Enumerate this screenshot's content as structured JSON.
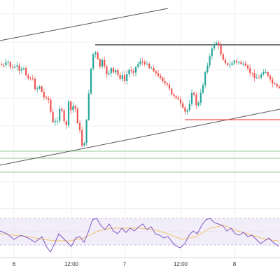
{
  "chart_data": {
    "type": "candlestick",
    "title": "",
    "xlabel": "",
    "ylabel": "",
    "x_tick_labels": [
      "6",
      "12:00",
      "7",
      "12:00",
      "8"
    ],
    "grid": true,
    "colors": {
      "up": "#26a69a",
      "down": "#ef5350",
      "trendline": "#555555",
      "resistance": "#222222",
      "support": "#ef5350",
      "horizontal_green": "#66bb6a",
      "rsi_line": "#7e57c2",
      "rsi_signal": "#f2c26b",
      "rsi_band": "#ede7f6"
    },
    "price_path": [
      [
        0,
        92
      ],
      [
        6,
        95
      ],
      [
        11,
        88
      ],
      [
        17,
        99
      ],
      [
        23,
        93
      ],
      [
        28,
        104
      ],
      [
        34,
        96
      ],
      [
        40,
        112
      ],
      [
        45,
        110
      ],
      [
        51,
        128
      ],
      [
        57,
        122
      ],
      [
        62,
        140
      ],
      [
        68,
        136
      ],
      [
        72,
        158
      ],
      [
        76,
        178
      ],
      [
        82,
        170
      ],
      [
        86,
        150
      ],
      [
        90,
        168
      ],
      [
        94,
        185
      ],
      [
        98,
        148
      ],
      [
        102,
        160
      ],
      [
        106,
        146
      ],
      [
        110,
        170
      ],
      [
        114,
        188
      ],
      [
        118,
        212
      ],
      [
        122,
        196
      ],
      [
        126,
        140
      ],
      [
        130,
        98
      ],
      [
        134,
        72
      ],
      [
        138,
        80
      ],
      [
        142,
        96
      ],
      [
        146,
        88
      ],
      [
        150,
        100
      ],
      [
        154,
        108
      ],
      [
        158,
        96
      ],
      [
        162,
        106
      ],
      [
        166,
        100
      ],
      [
        170,
        112
      ],
      [
        174,
        108
      ],
      [
        178,
        116
      ],
      [
        182,
        104
      ],
      [
        186,
        98
      ],
      [
        190,
        102
      ],
      [
        194,
        96
      ],
      [
        198,
        90
      ],
      [
        202,
        84
      ],
      [
        206,
        96
      ],
      [
        210,
        88
      ],
      [
        214,
        98
      ],
      [
        218,
        96
      ],
      [
        222,
        104
      ],
      [
        226,
        110
      ],
      [
        230,
        108
      ],
      [
        234,
        118
      ],
      [
        238,
        122
      ],
      [
        242,
        128
      ],
      [
        246,
        138
      ],
      [
        250,
        134
      ],
      [
        254,
        142
      ],
      [
        258,
        150
      ],
      [
        262,
        158
      ],
      [
        266,
        162
      ],
      [
        270,
        150
      ],
      [
        274,
        130
      ],
      [
        278,
        140
      ],
      [
        282,
        155
      ],
      [
        286,
        138
      ],
      [
        290,
        120
      ],
      [
        294,
        98
      ],
      [
        298,
        86
      ],
      [
        302,
        74
      ],
      [
        306,
        62
      ],
      [
        310,
        60
      ],
      [
        314,
        72
      ],
      [
        318,
        82
      ],
      [
        322,
        88
      ],
      [
        326,
        96
      ],
      [
        330,
        92
      ],
      [
        334,
        86
      ],
      [
        338,
        90
      ],
      [
        342,
        88
      ],
      [
        346,
        92
      ],
      [
        350,
        96
      ],
      [
        354,
        100
      ],
      [
        358,
        104
      ],
      [
        362,
        108
      ],
      [
        366,
        110
      ],
      [
        370,
        112
      ],
      [
        374,
        104
      ],
      [
        378,
        98
      ],
      [
        382,
        108
      ],
      [
        386,
        116
      ],
      [
        390,
        120
      ],
      [
        394,
        124
      ],
      [
        398,
        128
      ]
    ],
    "rsi_path": [
      [
        0,
        330
      ],
      [
        10,
        334
      ],
      [
        20,
        342
      ],
      [
        30,
        336
      ],
      [
        40,
        340
      ],
      [
        50,
        346
      ],
      [
        60,
        338
      ],
      [
        66,
        352
      ],
      [
        72,
        360
      ],
      [
        78,
        348
      ],
      [
        84,
        334
      ],
      [
        90,
        340
      ],
      [
        96,
        346
      ],
      [
        102,
        352
      ],
      [
        108,
        340
      ],
      [
        114,
        338
      ],
      [
        120,
        346
      ],
      [
        126,
        332
      ],
      [
        132,
        314
      ],
      [
        138,
        312
      ],
      [
        144,
        322
      ],
      [
        150,
        328
      ],
      [
        156,
        320
      ],
      [
        162,
        330
      ],
      [
        168,
        334
      ],
      [
        174,
        326
      ],
      [
        180,
        332
      ],
      [
        186,
        326
      ],
      [
        192,
        330
      ],
      [
        198,
        324
      ],
      [
        204,
        320
      ],
      [
        210,
        328
      ],
      [
        216,
        324
      ],
      [
        222,
        334
      ],
      [
        228,
        336
      ],
      [
        234,
        340
      ],
      [
        240,
        338
      ],
      [
        246,
        346
      ],
      [
        252,
        352
      ],
      [
        258,
        354
      ],
      [
        264,
        348
      ],
      [
        270,
        336
      ],
      [
        276,
        330
      ],
      [
        282,
        334
      ],
      [
        288,
        322
      ],
      [
        294,
        314
      ],
      [
        300,
        312
      ],
      [
        306,
        318
      ],
      [
        312,
        320
      ],
      [
        318,
        322
      ],
      [
        324,
        330
      ],
      [
        330,
        326
      ],
      [
        336,
        334
      ],
      [
        342,
        336
      ],
      [
        348,
        332
      ],
      [
        354,
        338
      ],
      [
        360,
        336
      ],
      [
        366,
        342
      ],
      [
        372,
        348
      ],
      [
        378,
        344
      ],
      [
        384,
        340
      ],
      [
        390,
        346
      ],
      [
        398,
        352
      ]
    ],
    "rsi_signal_path": [
      [
        0,
        334
      ],
      [
        20,
        336
      ],
      [
        40,
        338
      ],
      [
        60,
        342
      ],
      [
        80,
        344
      ],
      [
        100,
        344
      ],
      [
        120,
        340
      ],
      [
        140,
        330
      ],
      [
        160,
        326
      ],
      [
        180,
        326
      ],
      [
        200,
        326
      ],
      [
        220,
        328
      ],
      [
        240,
        334
      ],
      [
        260,
        342
      ],
      [
        280,
        338
      ],
      [
        300,
        326
      ],
      [
        320,
        322
      ],
      [
        340,
        330
      ],
      [
        360,
        336
      ],
      [
        380,
        342
      ],
      [
        398,
        344
      ]
    ],
    "trendline_upper": [
      [
        0,
        58
      ],
      [
        240,
        12
      ]
    ],
    "trendline_lower": [
      [
        0,
        236
      ],
      [
        400,
        156
      ]
    ],
    "resistance_line": [
      [
        136,
        64
      ],
      [
        400,
        64
      ]
    ],
    "support_line": [
      [
        264,
        171
      ],
      [
        400,
        171
      ]
    ],
    "green_lines_y": [
      216,
      226,
      246
    ]
  }
}
